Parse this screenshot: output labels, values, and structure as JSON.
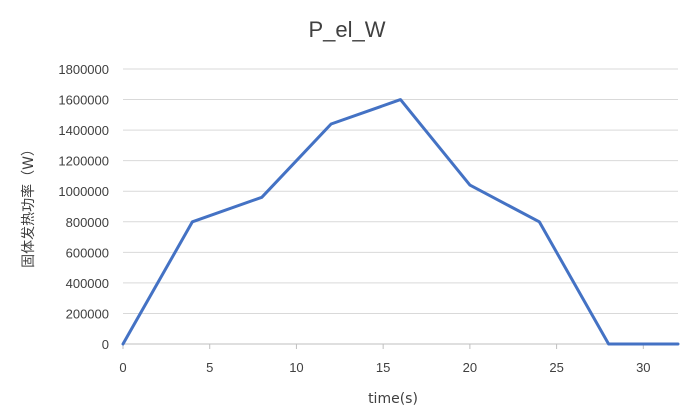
{
  "chart_data": {
    "type": "line",
    "title": "P_el_W",
    "xlabel": "time(s)",
    "ylabel": "固体发热功率（W）",
    "xlim": [
      0,
      32
    ],
    "ylim": [
      0,
      1800000
    ],
    "x_ticks": [
      0,
      5,
      10,
      15,
      20,
      25,
      30
    ],
    "y_ticks": [
      0,
      200000,
      400000,
      600000,
      800000,
      1000000,
      1200000,
      1400000,
      1600000,
      1800000
    ],
    "grid": "horizontal",
    "legend": "none",
    "series": [
      {
        "color": "#4472c4",
        "x": [
          0,
          4,
          8,
          12,
          16,
          20,
          24,
          28,
          32
        ],
        "y": [
          0,
          800000,
          960000,
          1440000,
          1600000,
          1040000,
          800000,
          0,
          0
        ]
      }
    ]
  }
}
